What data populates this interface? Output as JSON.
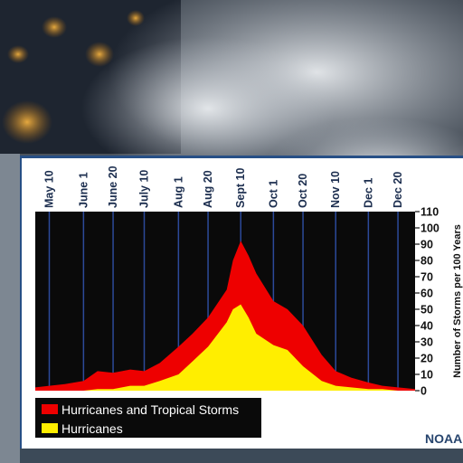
{
  "chart_data": {
    "type": "area",
    "x_labels": [
      "May 10",
      "June 1",
      "June 20",
      "July 10",
      "Aug 1",
      "Aug 20",
      "Sept 10",
      "Oct 1",
      "Oct 20",
      "Nov 10",
      "Dec 1",
      "Dec 20"
    ],
    "ylabel": "Number of Storms per 100 Years",
    "ylim": [
      0,
      110
    ],
    "yticks": [
      0,
      10,
      20,
      30,
      40,
      50,
      60,
      70,
      80,
      90,
      100,
      110
    ],
    "grid": false,
    "legend_position": "bottom-left",
    "series": [
      {
        "name": "Hurricanes and Tropical Storms",
        "color": "#ee0000",
        "x": [
          "May 1",
          "May 10",
          "May 20",
          "June 1",
          "June 10",
          "June 20",
          "July 1",
          "July 10",
          "July 20",
          "Aug 1",
          "Aug 10",
          "Aug 20",
          "Sept 1",
          "Sept 5",
          "Sept 10",
          "Sept 15",
          "Sept 20",
          "Oct 1",
          "Oct 10",
          "Oct 20",
          "Nov 1",
          "Nov 10",
          "Nov 20",
          "Dec 1",
          "Dec 10",
          "Dec 20",
          "Dec 31"
        ],
        "values": [
          2,
          3,
          4,
          6,
          12,
          11,
          13,
          12,
          17,
          27,
          35,
          45,
          62,
          80,
          92,
          83,
          72,
          55,
          50,
          40,
          22,
          12,
          8,
          5,
          3,
          2,
          1
        ]
      },
      {
        "name": "Hurricanes",
        "color": "#ffee00",
        "x": [
          "May 1",
          "May 10",
          "May 20",
          "June 1",
          "June 10",
          "June 20",
          "July 1",
          "July 10",
          "July 20",
          "Aug 1",
          "Aug 10",
          "Aug 20",
          "Sept 1",
          "Sept 5",
          "Sept 10",
          "Sept 15",
          "Sept 20",
          "Oct 1",
          "Oct 10",
          "Oct 20",
          "Nov 1",
          "Nov 10",
          "Nov 20",
          "Dec 1",
          "Dec 10",
          "Dec 20",
          "Dec 31"
        ],
        "values": [
          0,
          0,
          0,
          0,
          1,
          1,
          3,
          3,
          6,
          10,
          18,
          27,
          42,
          50,
          53,
          45,
          35,
          28,
          25,
          15,
          6,
          3,
          2,
          1,
          1,
          0,
          0
        ]
      }
    ]
  },
  "credit": "NOAA"
}
